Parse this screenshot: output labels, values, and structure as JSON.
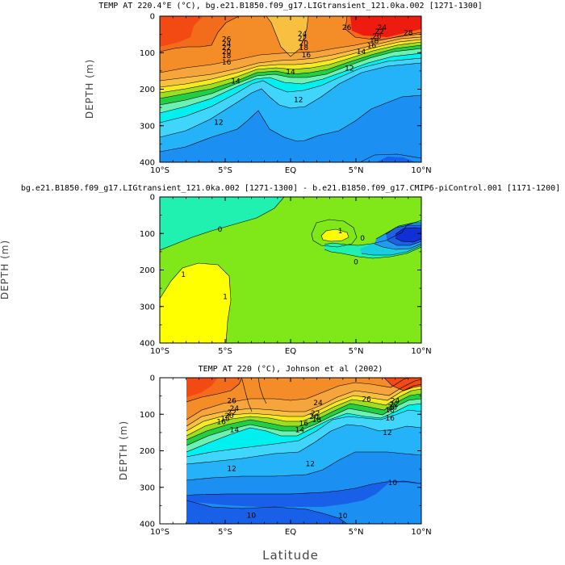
{
  "chart_data": [
    {
      "type": "contour",
      "title": "TEMP AT 220.4°E (°C), bg.e21.B1850.f09_g17.LIGtransient_121.0ka.002 [1271-1300]",
      "xlabel": "",
      "ylabel": "DEPTH (m)",
      "x_ticks": [
        "10°S",
        "5°S",
        "EQ",
        "5°N",
        "10°N"
      ],
      "y_ticks": [
        "0",
        "100",
        "200",
        "300",
        "400"
      ],
      "xlim": [
        -10,
        10
      ],
      "ylim": [
        400,
        0
      ],
      "contour_labels": [
        {
          "text": "26",
          "x": -4.9,
          "y": 62
        },
        {
          "text": "24",
          "x": -4.9,
          "y": 75
        },
        {
          "text": "22",
          "x": -4.9,
          "y": 86
        },
        {
          "text": "20",
          "x": -4.9,
          "y": 97
        },
        {
          "text": "18",
          "x": -4.9,
          "y": 108
        },
        {
          "text": "16",
          "x": -4.9,
          "y": 125
        },
        {
          "text": "14",
          "x": -4.2,
          "y": 178
        },
        {
          "text": "12",
          "x": -5.5,
          "y": 290
        },
        {
          "text": "24",
          "x": 0.9,
          "y": 48
        },
        {
          "text": "22",
          "x": 0.9,
          "y": 60
        },
        {
          "text": "20",
          "x": 1.0,
          "y": 74
        },
        {
          "text": "18",
          "x": 1.0,
          "y": 86
        },
        {
          "text": "16",
          "x": 1.2,
          "y": 106
        },
        {
          "text": "14",
          "x": 0.0,
          "y": 152
        },
        {
          "text": "12",
          "x": 0.6,
          "y": 228
        },
        {
          "text": "26",
          "x": 4.3,
          "y": 30
        },
        {
          "text": "28",
          "x": 9.0,
          "y": 45
        },
        {
          "text": "24",
          "x": 7.0,
          "y": 30
        },
        {
          "text": "22",
          "x": 6.8,
          "y": 42
        },
        {
          "text": "20",
          "x": 6.6,
          "y": 55
        },
        {
          "text": "18",
          "x": 6.4,
          "y": 67
        },
        {
          "text": "16",
          "x": 6.2,
          "y": 80
        },
        {
          "text": "14",
          "x": 5.4,
          "y": 97
        },
        {
          "text": "12",
          "x": 4.5,
          "y": 142
        }
      ]
    },
    {
      "type": "contour",
      "title": "bg.e21.B1850.f09_g17.LIGtransient_121.0ka.002 [1271-1300] - b.e21.B1850.f09_g17.CMIP6-piControl.001 [1171-1200]",
      "xlabel": "",
      "ylabel": "DEPTH (m)",
      "x_ticks": [
        "10°S",
        "5°S",
        "EQ",
        "5°N",
        "10°N"
      ],
      "y_ticks": [
        "0",
        "100",
        "200",
        "300",
        "400"
      ],
      "xlim": [
        -10,
        10
      ],
      "ylim": [
        400,
        0
      ],
      "contour_labels": [
        {
          "text": "0",
          "x": -5.4,
          "y": 88
        },
        {
          "text": "1",
          "x": -8.2,
          "y": 212
        },
        {
          "text": "1",
          "x": -5.0,
          "y": 272
        },
        {
          "text": "0",
          "x": 5.0,
          "y": 178
        },
        {
          "text": "0",
          "x": 5.5,
          "y": 112
        },
        {
          "text": "1",
          "x": 3.8,
          "y": 92
        }
      ]
    },
    {
      "type": "contour",
      "title": "TEMP AT 220 (°C), Johnson et al (2002)",
      "xlabel": "Latitude",
      "ylabel": "DEPTH (m)",
      "x_ticks": [
        "10°S",
        "5°S",
        "EQ",
        "5°N",
        "10°N"
      ],
      "y_ticks": [
        "0",
        "100",
        "200",
        "300",
        "400"
      ],
      "xlim": [
        -10,
        10
      ],
      "ylim": [
        400,
        0
      ],
      "data_xrange": [
        -8,
        10
      ],
      "contour_labels": [
        {
          "text": "26",
          "x": -4.5,
          "y": 62
        },
        {
          "text": "24",
          "x": -4.3,
          "y": 83
        },
        {
          "text": "22",
          "x": -4.5,
          "y": 95
        },
        {
          "text": "20",
          "x": -4.7,
          "y": 103
        },
        {
          "text": "18",
          "x": -5.0,
          "y": 111
        },
        {
          "text": "16",
          "x": -5.3,
          "y": 120
        },
        {
          "text": "14",
          "x": -4.3,
          "y": 142
        },
        {
          "text": "12",
          "x": -4.5,
          "y": 248
        },
        {
          "text": "24",
          "x": 2.1,
          "y": 68
        },
        {
          "text": "22",
          "x": 1.9,
          "y": 97
        },
        {
          "text": "20",
          "x": 1.8,
          "y": 106
        },
        {
          "text": "18",
          "x": 2.0,
          "y": 114
        },
        {
          "text": "16",
          "x": 1.0,
          "y": 124
        },
        {
          "text": "14",
          "x": 0.7,
          "y": 142
        },
        {
          "text": "12",
          "x": 1.5,
          "y": 235
        },
        {
          "text": "26",
          "x": 5.8,
          "y": 58
        },
        {
          "text": "24",
          "x": 8.0,
          "y": 63
        },
        {
          "text": "22",
          "x": 7.9,
          "y": 73
        },
        {
          "text": "20",
          "x": 7.8,
          "y": 80
        },
        {
          "text": "18",
          "x": 7.6,
          "y": 88
        },
        {
          "text": "16",
          "x": 7.6,
          "y": 110
        },
        {
          "text": "12",
          "x": 7.4,
          "y": 150
        },
        {
          "text": "10",
          "x": 7.8,
          "y": 287
        },
        {
          "text": "10",
          "x": 4.0,
          "y": 377
        },
        {
          "text": "10",
          "x": -3.0,
          "y": 376
        }
      ]
    }
  ]
}
